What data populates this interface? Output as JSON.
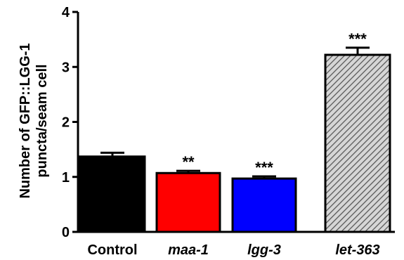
{
  "chart_data": {
    "type": "bar",
    "categories": [
      "Control",
      "maa-1",
      "lgg-3",
      "let-363"
    ],
    "categories_italic": [
      false,
      true,
      true,
      true
    ],
    "values": [
      1.37,
      1.07,
      0.97,
      3.22
    ],
    "errors": [
      0.07,
      0.04,
      0.04,
      0.13
    ],
    "significance": [
      "",
      "**",
      "***",
      "***"
    ],
    "colors": [
      "#000000",
      "#ff0000",
      "#0000ff",
      "hatched-gray"
    ],
    "title": "",
    "xlabel": "",
    "ylabel_lines": [
      "Number of GFP::LGG-1",
      "puncta/seam cell"
    ],
    "ylim": [
      0,
      4
    ],
    "yticks": [
      "0",
      "1",
      "2",
      "3",
      "4"
    ],
    "grid": false,
    "legend": "none"
  }
}
